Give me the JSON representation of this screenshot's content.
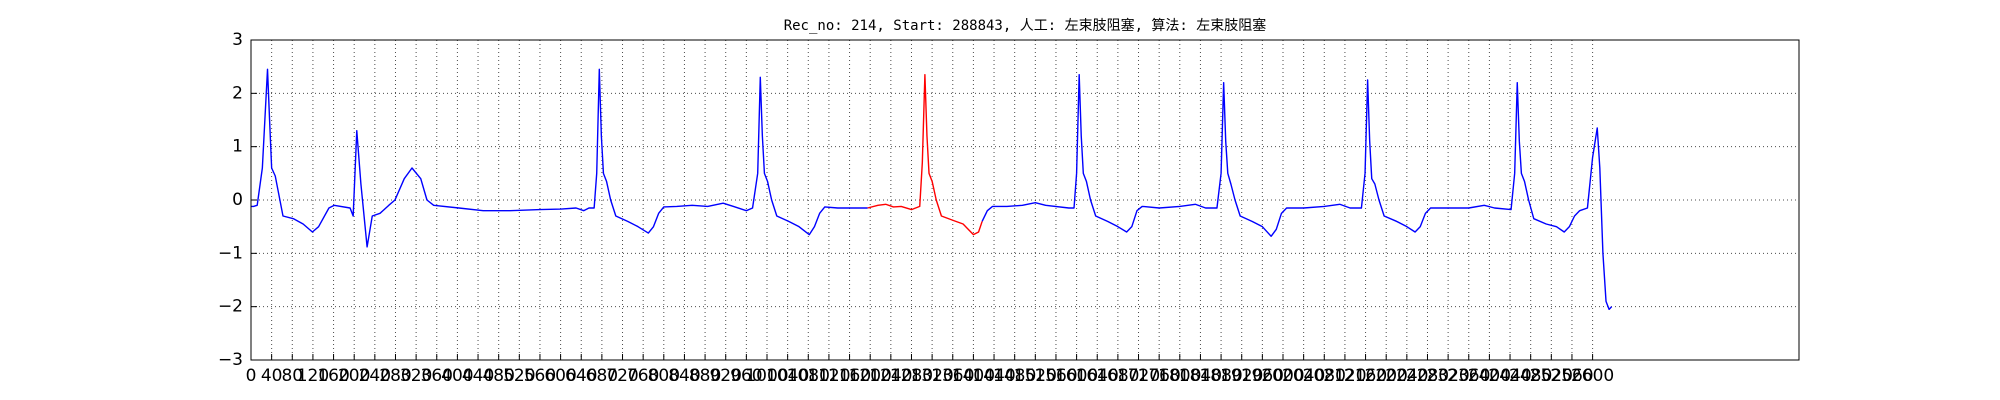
{
  "chart_data": {
    "type": "line",
    "title": "Rec_no: 214, Start: 288843, 人工: 左束肢阻塞, 算法: 左束肢阻塞",
    "xlim": [
      0,
      3000
    ],
    "ylim": [
      -3,
      3
    ],
    "xticks": [
      0,
      40,
      80,
      120,
      160,
      200,
      240,
      280,
      320,
      360,
      400,
      440,
      480,
      520,
      560,
      600,
      640,
      680,
      720,
      760,
      800,
      840,
      880,
      920,
      960,
      1000,
      1040,
      1080,
      1120,
      1160,
      1200,
      1240,
      1280,
      1320,
      1360,
      1400,
      1440,
      1480,
      1520,
      1560,
      1600,
      1640,
      1680,
      1720,
      1760,
      1800,
      1840,
      1880,
      1920,
      1960,
      2000,
      2040,
      2080,
      2120,
      2160,
      2200,
      2240,
      2280,
      2320,
      2360,
      2400,
      2440,
      2480,
      2520,
      2560,
      2600
    ],
    "yticks": [
      {
        "value": -3,
        "label": "−3"
      },
      {
        "value": -2,
        "label": "−2"
      },
      {
        "value": -1,
        "label": "−1"
      },
      0,
      1,
      2,
      3
    ],
    "grid": true,
    "series": [
      {
        "color": "#0000ff",
        "x": [
          0,
          5,
          12,
          22,
          32,
          36,
          40,
          47,
          62,
          82,
          101,
          119,
          131,
          151,
          161,
          192,
          198,
          205,
          213,
          225,
          235,
          250,
          267,
          279,
          297,
          312,
          329,
          341,
          354,
          403,
          450,
          502,
          560,
          601,
          630,
          645,
          655,
          665,
          670,
          675,
          679,
          683,
          689,
          697,
          707,
          730,
          750,
          770,
          780,
          790,
          800,
          825,
          855,
          885,
          915,
          935,
          960,
          972,
          982,
          987,
          991,
          995,
          1001,
          1009,
          1019,
          1042,
          1062,
          1082,
          1092,
          1102,
          1112,
          1137,
          1167,
          1195
        ],
        "values": [
          -0.12,
          -0.12,
          -0.1,
          0.6,
          2.45,
          1.5,
          0.6,
          0.45,
          -0.3,
          -0.35,
          -0.45,
          -0.6,
          -0.5,
          -0.15,
          -0.1,
          -0.15,
          -0.3,
          1.3,
          0.3,
          -0.88,
          -0.3,
          -0.25,
          -0.1,
          0.0,
          0.4,
          0.6,
          0.4,
          0.0,
          -0.1,
          -0.15,
          -0.2,
          -0.2,
          -0.18,
          -0.17,
          -0.15,
          -0.2,
          -0.15,
          -0.15,
          0.5,
          2.45,
          1.2,
          0.5,
          0.35,
          0,
          -0.3,
          -0.4,
          -0.5,
          -0.62,
          -0.5,
          -0.25,
          -0.13,
          -0.12,
          -0.1,
          -0.12,
          -0.06,
          -0.12,
          -0.2,
          -0.15,
          0.5,
          2.3,
          1.2,
          0.5,
          0.35,
          0,
          -0.3,
          -0.4,
          -0.5,
          -0.65,
          -0.5,
          -0.25,
          -0.13,
          -0.15,
          -0.15,
          -0.15
        ]
      },
      {
        "color": "#ff0000",
        "x": [
          1195,
          1215,
          1230,
          1245,
          1260,
          1280,
          1296,
          1301,
          1306,
          1310,
          1314,
          1320,
          1328,
          1338,
          1360,
          1380,
          1400,
          1410,
          1417
        ],
        "values": [
          -0.15,
          -0.1,
          -0.08,
          -0.13,
          -0.12,
          -0.18,
          -0.12,
          0.7,
          2.35,
          1.2,
          0.5,
          0.35,
          0,
          -0.3,
          -0.38,
          -0.45,
          -0.65,
          -0.6,
          -0.4
        ]
      },
      {
        "color": "#0000ff",
        "x": [
          1417,
          1427,
          1437,
          1465,
          1495,
          1520,
          1540,
          1585,
          1595,
          1600,
          1605,
          1609,
          1613,
          1619,
          1627,
          1637,
          1660,
          1680,
          1697,
          1707,
          1717,
          1727,
          1760,
          1800,
          1830,
          1850,
          1872,
          1880,
          1885,
          1889,
          1893,
          1899,
          1907,
          1917,
          1940,
          1960,
          1977,
          1987,
          1997,
          2007,
          2040,
          2080,
          2110,
          2130,
          2152,
          2159,
          2164,
          2168,
          2172,
          2178,
          2186,
          2196,
          2220,
          2240,
          2256,
          2266,
          2276,
          2286,
          2320,
          2360,
          2390,
          2410,
          2442,
          2449,
          2454,
          2458,
          2462,
          2468,
          2476,
          2486,
          2510,
          2530,
          2545,
          2555,
          2565,
          2575,
          2590,
          2600,
          2609,
          2614,
          2620,
          2626,
          2632,
          2637
        ],
        "values": [
          -0.4,
          -0.2,
          -0.12,
          -0.12,
          -0.1,
          -0.05,
          -0.1,
          -0.15,
          -0.15,
          0.5,
          2.35,
          1.2,
          0.5,
          0.35,
          0,
          -0.3,
          -0.4,
          -0.5,
          -0.6,
          -0.5,
          -0.2,
          -0.12,
          -0.15,
          -0.12,
          -0.08,
          -0.15,
          -0.15,
          0.5,
          2.2,
          1.1,
          0.5,
          0.3,
          0,
          -0.3,
          -0.4,
          -0.5,
          -0.68,
          -0.55,
          -0.25,
          -0.15,
          -0.15,
          -0.12,
          -0.08,
          -0.15,
          -0.15,
          0.5,
          2.25,
          1.1,
          0.4,
          0.3,
          0,
          -0.3,
          -0.4,
          -0.5,
          -0.6,
          -0.5,
          -0.25,
          -0.15,
          -0.15,
          -0.15,
          -0.1,
          -0.15,
          -0.18,
          0.5,
          2.2,
          1.1,
          0.5,
          0.35,
          0,
          -0.35,
          -0.45,
          -0.5,
          -0.6,
          -0.5,
          -0.3,
          -0.2,
          -0.15,
          0.8,
          1.35,
          0.6,
          -1.0,
          -1.9,
          -2.05,
          -2.0
        ]
      }
    ]
  }
}
